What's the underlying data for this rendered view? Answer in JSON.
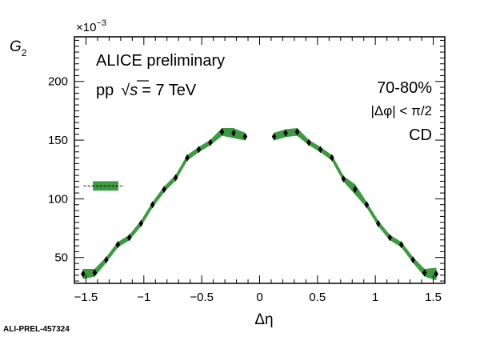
{
  "chart_data": {
    "type": "line",
    "title": "",
    "xlabel": "Δη",
    "ylabel_main": "G",
    "ylabel_sub": "2",
    "y_multiplier": "×10",
    "y_multiplier_exp": "−3",
    "xlim": [
      -1.6,
      1.6
    ],
    "ylim": [
      28,
      238
    ],
    "x_ticks": [
      -1.5,
      -1,
      -0.5,
      0,
      0.5,
      1,
      1.5
    ],
    "x_tick_labels": [
      "−1.5",
      "−1",
      "−0.5",
      "0",
      "0.5",
      "1",
      "1.5"
    ],
    "y_ticks": [
      50,
      100,
      150,
      200
    ],
    "y_tick_labels": [
      "50",
      "100",
      "150",
      "200"
    ],
    "annotations": {
      "experiment": "ALICE preliminary",
      "system_prefix": "pp",
      "energy_var": "s",
      "energy_value": "= 7 TeV",
      "centrality": "70-80%",
      "dphi_cut": "|Δφ| < π/2",
      "charge_combo": "CD"
    },
    "legend_marker": {
      "x": [
        -1.52,
        -1.17
      ],
      "y": 111,
      "y_err": 4
    },
    "color": "#3c9a41",
    "series": [
      {
        "x": [
          -1.525,
          -1.425,
          -1.325,
          -1.225,
          -1.125,
          -1.025,
          -0.925,
          -0.825,
          -0.725,
          -0.625,
          -0.525,
          -0.425,
          -0.325,
          -0.225,
          -0.125
        ],
        "y": [
          36,
          37,
          48,
          61,
          67,
          79,
          95,
          108,
          118,
          135,
          142,
          148,
          157,
          156,
          153
        ],
        "err": [
          4,
          3,
          2,
          2,
          2,
          2,
          2,
          2,
          2,
          2,
          2,
          2,
          3,
          4,
          3
        ]
      },
      {
        "x": [
          0.125,
          0.225,
          0.325,
          0.425,
          0.525,
          0.625,
          0.725,
          0.825,
          0.925,
          1.025,
          1.125,
          1.225,
          1.325,
          1.425,
          1.525
        ],
        "y": [
          153,
          156,
          157,
          148,
          142,
          135,
          117,
          108,
          95,
          79,
          67,
          61,
          48,
          37,
          36
        ],
        "err": [
          3,
          3,
          3,
          2,
          2,
          2,
          2,
          4,
          2,
          2,
          2,
          2,
          2,
          3,
          5
        ]
      }
    ],
    "grid": false,
    "footer": "ALI-PREL-457324"
  }
}
